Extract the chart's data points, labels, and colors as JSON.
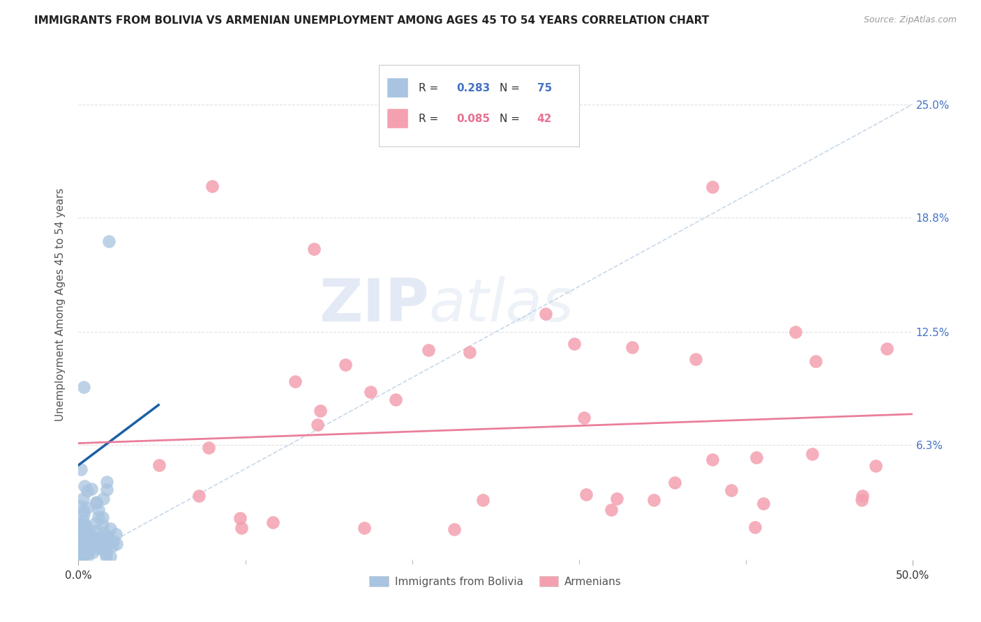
{
  "title": "IMMIGRANTS FROM BOLIVIA VS ARMENIAN UNEMPLOYMENT AMONG AGES 45 TO 54 YEARS CORRELATION CHART",
  "source": "Source: ZipAtlas.com",
  "ylabel": "Unemployment Among Ages 45 to 54 years",
  "xlim": [
    0.0,
    0.5
  ],
  "ylim": [
    0.0,
    0.28
  ],
  "ytick_positions": [
    0.063,
    0.125,
    0.188,
    0.25
  ],
  "ytick_labels": [
    "6.3%",
    "12.5%",
    "18.8%",
    "25.0%"
  ],
  "bolivia_scatter_color": "#a8c4e0",
  "armenia_scatter_color": "#f4a0b0",
  "bolivia_line_color": "#1a5fa8",
  "armenia_line_color": "#e87090",
  "trendline_color": "#c0d4e8",
  "background_color": "#ffffff",
  "grid_color": "#e0e0e0",
  "R_bolivia": "0.283",
  "N_bolivia": "75",
  "R_armenia": "0.085",
  "N_armenia": "42",
  "legend_label_bolivia": "Immigrants from Bolivia",
  "legend_label_armenia": "Armenians",
  "watermark": "ZIPatlas",
  "watermark_zip": "ZIP",
  "watermark_atlas": "atlas"
}
